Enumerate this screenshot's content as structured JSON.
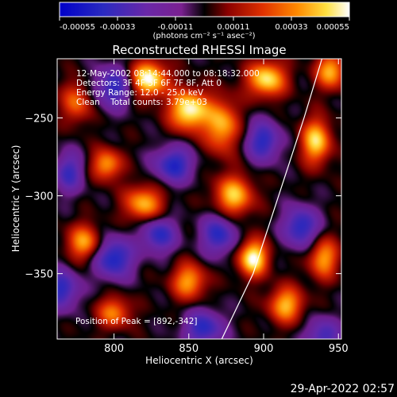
{
  "chart_data": {
    "type": "heatmap",
    "title": "Reconstructed RHESSI Image",
    "xlabel": "Heliocentric X (arcsec)",
    "ylabel": "Heliocentric Y (arcsec)",
    "xlim": [
      762,
      952
    ],
    "ylim": [
      -392,
      -212
    ],
    "xticks": [
      800,
      850,
      900,
      950
    ],
    "yticks": [
      -250,
      -300,
      -350
    ],
    "colorbar": {
      "colormap": "rhessi-blue-purple-red-yellow-white",
      "ticks": [
        "-0.00055",
        "-0.00033",
        "-0.00011",
        "0.00011",
        "0.00033",
        "0.00055"
      ],
      "range": [
        -0.00055,
        0.00055
      ],
      "unit_label": "(photons cm⁻² s⁻¹ asec⁻²)"
    },
    "annotations": {
      "time_range": "12-May-2002 08:14:44.000 to 08:18:32.000",
      "detectors": "Detectors: 3F 4F 5F 6F 7F 8F, Att 0",
      "energy": "Energy Range: 12.0 - 25.0 keV",
      "clean": "Clean    Total counts: 3.79e+03",
      "peak": "Position of Peak = [892,-342]"
    },
    "peak": {
      "x": 892,
      "y": -342
    },
    "limb": [
      [
        872,
        -392
      ],
      [
        893,
        -350
      ],
      [
        910,
        -300
      ],
      [
        927,
        -250
      ],
      [
        939,
        -212
      ]
    ],
    "sources": [
      {
        "x": 823,
        "y": -225,
        "amp": 1.0,
        "sx": 9,
        "sy": 8
      },
      {
        "x": 850,
        "y": -245,
        "amp": 1.0,
        "sx": 9,
        "sy": 9
      },
      {
        "x": 902,
        "y": -225,
        "amp": 0.9,
        "sx": 9,
        "sy": 8
      },
      {
        "x": 893,
        "y": -340,
        "amp": 1.0,
        "sx": 7,
        "sy": 8
      },
      {
        "x": 872,
        "y": -255,
        "amp": 0.75,
        "sx": 8,
        "sy": 12
      },
      {
        "x": 935,
        "y": -265,
        "amp": 0.85,
        "sx": 7,
        "sy": 10
      },
      {
        "x": 880,
        "y": -300,
        "amp": 0.8,
        "sx": 9,
        "sy": 9
      },
      {
        "x": 820,
        "y": -305,
        "amp": 0.75,
        "sx": 9,
        "sy": 8
      },
      {
        "x": 795,
        "y": -280,
        "amp": 0.7,
        "sx": 7,
        "sy": 7
      },
      {
        "x": 780,
        "y": -330,
        "amp": 0.7,
        "sx": 8,
        "sy": 8
      },
      {
        "x": 850,
        "y": -355,
        "amp": 0.7,
        "sx": 8,
        "sy": 8
      },
      {
        "x": 915,
        "y": -370,
        "amp": 0.75,
        "sx": 8,
        "sy": 8
      },
      {
        "x": 940,
        "y": -340,
        "amp": 0.7,
        "sx": 7,
        "sy": 9
      },
      {
        "x": 800,
        "y": -375,
        "amp": 0.6,
        "sx": 8,
        "sy": 7
      },
      {
        "x": 775,
        "y": -240,
        "amp": 0.55,
        "sx": 7,
        "sy": 9
      },
      {
        "x": 945,
        "y": -220,
        "amp": 0.75,
        "sx": 7,
        "sy": 8
      },
      {
        "x": 800,
        "y": -230,
        "amp": -0.7,
        "sx": 9,
        "sy": 9
      },
      {
        "x": 840,
        "y": -280,
        "amp": -0.75,
        "sx": 9,
        "sy": 8
      },
      {
        "x": 800,
        "y": -340,
        "amp": -0.8,
        "sx": 9,
        "sy": 9
      },
      {
        "x": 830,
        "y": -325,
        "amp": -0.7,
        "sx": 8,
        "sy": 8
      },
      {
        "x": 870,
        "y": -325,
        "amp": -0.7,
        "sx": 8,
        "sy": 9
      },
      {
        "x": 925,
        "y": -320,
        "amp": -0.75,
        "sx": 8,
        "sy": 9
      },
      {
        "x": 900,
        "y": -265,
        "amp": -0.7,
        "sx": 8,
        "sy": 9
      },
      {
        "x": 860,
        "y": -385,
        "amp": -0.7,
        "sx": 9,
        "sy": 8
      },
      {
        "x": 765,
        "y": -360,
        "amp": -0.7,
        "sx": 8,
        "sy": 9
      },
      {
        "x": 940,
        "y": -390,
        "amp": -0.6,
        "sx": 8,
        "sy": 8
      },
      {
        "x": 770,
        "y": -285,
        "amp": -0.6,
        "sx": 7,
        "sy": 9
      }
    ]
  },
  "footer": {
    "timestamp": "29-Apr-2022 02:57"
  }
}
